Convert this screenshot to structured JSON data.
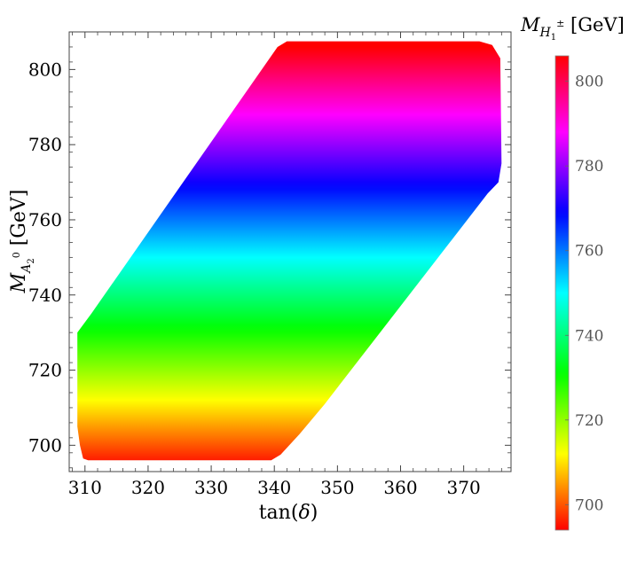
{
  "chart_data": {
    "type": "area",
    "xlabel": "tan(δ)",
    "ylabel": "M A2⁰ [GeV]",
    "colorbar_label": "M H1± [GeV]",
    "xlim": [
      307.5,
      377.5
    ],
    "ylim": [
      693,
      810
    ],
    "x_ticks": [
      310,
      320,
      330,
      340,
      350,
      360,
      370
    ],
    "y_ticks": [
      700,
      720,
      740,
      760,
      780,
      800
    ],
    "colorbar_range": [
      694,
      806
    ],
    "colorbar_ticks": [
      700,
      720,
      740,
      760,
      780,
      800
    ],
    "colormap": "rainbow (red→yellow→green→cyan→blue→magenta→red), color equals y value",
    "region_outline": [
      [
        309.7,
        696.5
      ],
      [
        309.2,
        700
      ],
      [
        308.8,
        705
      ],
      [
        308.8,
        730
      ],
      [
        311,
        735
      ],
      [
        340.5,
        806
      ],
      [
        342,
        807.5
      ],
      [
        372.5,
        807.5
      ],
      [
        374.5,
        806.5
      ],
      [
        375.8,
        803
      ],
      [
        376,
        775
      ],
      [
        375.5,
        770
      ],
      [
        373.8,
        767
      ],
      [
        348,
        711
      ],
      [
        344,
        703
      ],
      [
        341,
        697.5
      ],
      [
        339.5,
        696
      ],
      [
        310.5,
        696
      ]
    ],
    "grid": false,
    "legend": "none"
  }
}
